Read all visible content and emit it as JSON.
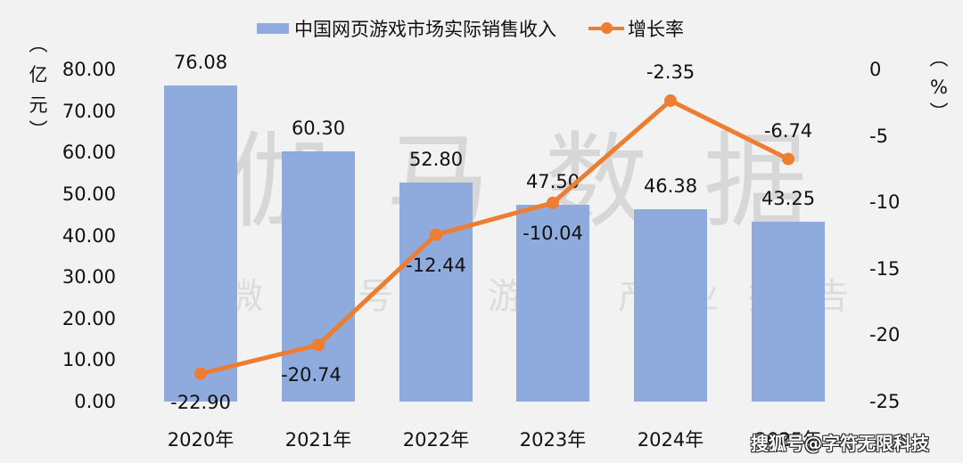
{
  "chart_data": {
    "type": "bar+line",
    "title": "",
    "categories": [
      "2020年",
      "2021年",
      "2022年",
      "2023年",
      "2024年",
      "2025年"
    ],
    "series": [
      {
        "name": "中国网页游戏市场实际销售收入",
        "type": "bar",
        "axis": "left",
        "values": [
          76.08,
          60.3,
          52.8,
          47.5,
          46.38,
          43.25
        ],
        "labels": [
          "76.08",
          "60.30",
          "52.80",
          "47.50",
          "46.38",
          "43.25"
        ],
        "color": "#8FAADC"
      },
      {
        "name": "增长率",
        "type": "line",
        "axis": "right",
        "values": [
          -22.9,
          -20.74,
          -12.44,
          -10.04,
          -2.35,
          -6.74
        ],
        "labels": [
          "-22.90",
          "-20.74",
          "-12.44",
          "-10.04",
          "-2.35",
          "-6.74"
        ],
        "color": "#ED7D31"
      }
    ],
    "left_axis": {
      "label": "（亿元）",
      "ylim": [
        0,
        80
      ],
      "ticks": [
        "0.00",
        "10.00",
        "20.00",
        "30.00",
        "40.00",
        "50.00",
        "60.00",
        "70.00",
        "80.00"
      ]
    },
    "right_axis": {
      "label": "（%）",
      "ylim": [
        -25,
        0
      ],
      "ticks": [
        "0",
        "-5",
        "-10",
        "-15",
        "-20",
        "-25"
      ]
    },
    "xlabel": "",
    "grid": false,
    "legend_position": "top"
  },
  "legend": {
    "bar_label": "中国网页游戏市场实际销售收入",
    "line_label": "增长率"
  },
  "axes": {
    "left_title_chars": [
      "︵",
      "亿",
      "元",
      "︶"
    ],
    "right_title_chars": [
      "︵",
      "%",
      "︶"
    ]
  },
  "watermark": {
    "main": "伽马数据",
    "sub": "微信号：游戏产业报告"
  },
  "source": "搜狐号@字符无限科技",
  "colors": {
    "bar": "#8FAADC",
    "line": "#ED7D31",
    "background": "#F2F2F2"
  }
}
